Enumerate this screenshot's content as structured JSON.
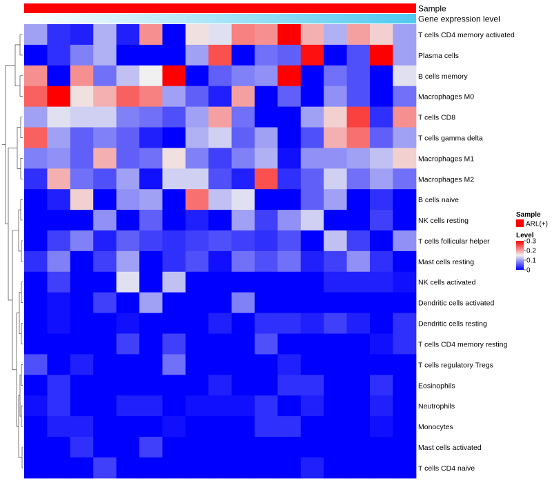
{
  "chart_data": {
    "type": "heatmap",
    "annotation_tracks": [
      {
        "label": "Sample",
        "color_start": "#ff0000",
        "color_end": "#ff0000"
      },
      {
        "label": "Gene expression level",
        "color_start": "#ffffff",
        "color_end": "#4ec9f0"
      }
    ],
    "rows": [
      "T cells CD4 memory activated",
      "Plasma cells",
      "B cells memory",
      "Macrophages M0",
      "T cells CD8",
      "T cells gamma delta",
      "Macrophages M1",
      "Macrophages M2",
      "B cells naive",
      "NK cells resting",
      "T cells follicular helper",
      "Mast cells resting",
      "NK cells activated",
      "Dendritic cells activated",
      "Dendritic cells resting",
      "T cells CD4 memory resting",
      "T cells regulatory  Tregs",
      "Eosinophils",
      "Neutrophils",
      "Monocytes",
      "Mast cells activated",
      "T cells CD4 naive"
    ],
    "n_columns": 17,
    "values": [
      [
        0.1,
        0.03,
        0.02,
        0.11,
        0.02,
        0.21,
        0.0,
        0.16,
        0.14,
        0.22,
        0.21,
        0.3,
        0.19,
        0.11,
        0.2,
        0.17,
        0.1
      ],
      [
        0.0,
        0.03,
        0.08,
        0.11,
        0.0,
        0.0,
        0.0,
        0.1,
        0.25,
        0.0,
        0.07,
        0.06,
        0.29,
        0.0,
        0.05,
        0.3,
        0.1
      ],
      [
        0.21,
        0.0,
        0.21,
        0.07,
        0.12,
        0.15,
        0.3,
        0.0,
        0.06,
        0.08,
        0.09,
        0.3,
        0.0,
        0.07,
        0.05,
        0.0,
        0.14
      ],
      [
        0.24,
        0.3,
        0.16,
        0.19,
        0.24,
        0.22,
        0.1,
        0.06,
        0.02,
        0.2,
        0.0,
        0.06,
        0.0,
        0.09,
        0.05,
        0.0,
        0.07
      ],
      [
        0.1,
        0.14,
        0.13,
        0.13,
        0.08,
        0.07,
        0.05,
        0.1,
        0.2,
        0.07,
        0.0,
        0.0,
        0.1,
        0.17,
        0.26,
        0.03,
        0.21
      ],
      [
        0.24,
        0.1,
        0.06,
        0.08,
        0.06,
        0.02,
        0.0,
        0.11,
        0.13,
        0.06,
        0.1,
        0.0,
        0.05,
        0.19,
        0.23,
        0.06,
        0.1
      ],
      [
        0.08,
        0.09,
        0.06,
        0.19,
        0.06,
        0.07,
        0.16,
        0.08,
        0.04,
        0.08,
        0.11,
        0.01,
        0.09,
        0.09,
        0.1,
        0.12,
        0.17
      ],
      [
        0.03,
        0.19,
        0.07,
        0.05,
        0.1,
        0.01,
        0.13,
        0.13,
        0.05,
        0.02,
        0.25,
        0.03,
        0.06,
        0.13,
        0.07,
        0.1,
        0.07
      ],
      [
        0.0,
        0.02,
        0.17,
        0.0,
        0.09,
        0.1,
        0.0,
        0.23,
        0.12,
        0.14,
        0.0,
        0.0,
        0.06,
        0.1,
        0.0,
        0.03,
        0.0
      ],
      [
        0.0,
        0.0,
        0.0,
        0.09,
        0.0,
        0.06,
        0.0,
        0.02,
        0.0,
        0.1,
        0.04,
        0.09,
        0.13,
        0.0,
        0.0,
        0.04,
        0.0
      ],
      [
        0.0,
        0.04,
        0.08,
        0.02,
        0.06,
        0.04,
        0.03,
        0.04,
        0.05,
        0.04,
        0.03,
        0.05,
        0.0,
        0.12,
        0.04,
        0.0,
        0.09
      ],
      [
        0.03,
        0.08,
        0.0,
        0.04,
        0.1,
        0.0,
        0.03,
        0.05,
        0.01,
        0.07,
        0.05,
        0.07,
        0.02,
        0.04,
        0.09,
        0.03,
        0.0
      ],
      [
        0.0,
        0.04,
        0.0,
        0.0,
        0.14,
        0.0,
        0.12,
        0.0,
        0.0,
        0.0,
        0.0,
        0.0,
        0.0,
        0.02,
        0.02,
        0.02,
        0.01
      ],
      [
        0.0,
        0.01,
        0.0,
        0.04,
        0.0,
        0.1,
        0.0,
        0.0,
        0.0,
        0.08,
        0.0,
        0.0,
        0.0,
        0.0,
        0.0,
        0.0,
        0.0
      ],
      [
        0.0,
        0.01,
        0.0,
        0.0,
        0.01,
        0.0,
        0.0,
        0.0,
        0.02,
        0.0,
        0.03,
        0.03,
        0.02,
        0.04,
        0.02,
        0.0,
        0.03
      ],
      [
        0.0,
        0.0,
        0.0,
        0.0,
        0.04,
        0.0,
        0.04,
        0.0,
        0.0,
        0.0,
        0.05,
        0.0,
        0.0,
        0.0,
        0.0,
        0.01,
        0.03
      ],
      [
        0.05,
        0.0,
        0.02,
        0.0,
        0.0,
        0.0,
        0.07,
        0.0,
        0.0,
        0.0,
        0.0,
        0.02,
        0.0,
        0.0,
        0.0,
        0.0,
        0.0
      ],
      [
        0.0,
        0.03,
        0.0,
        0.0,
        0.0,
        0.0,
        0.0,
        0.0,
        0.02,
        0.0,
        0.0,
        0.03,
        0.03,
        0.0,
        0.0,
        0.03,
        0.0
      ],
      [
        0.01,
        0.03,
        0.0,
        0.0,
        0.02,
        0.02,
        0.0,
        0.01,
        0.01,
        0.01,
        0.03,
        0.0,
        0.02,
        0.0,
        0.0,
        0.02,
        0.0
      ],
      [
        0.0,
        0.02,
        0.02,
        0.0,
        0.0,
        0.0,
        0.01,
        0.0,
        0.0,
        0.0,
        0.03,
        0.03,
        0.0,
        0.0,
        0.0,
        0.01,
        0.0
      ],
      [
        0.0,
        0.0,
        0.03,
        0.0,
        0.0,
        0.04,
        0.0,
        0.0,
        0.0,
        0.0,
        0.0,
        0.0,
        0.0,
        0.0,
        0.0,
        0.0,
        0.0
      ],
      [
        0.0,
        0.0,
        0.0,
        0.04,
        0.0,
        0.0,
        0.0,
        0.0,
        0.0,
        0.0,
        0.0,
        0.0,
        0.02,
        0.0,
        0.0,
        0.0,
        0.0
      ]
    ],
    "color_scale": {
      "min": 0,
      "mid": 0.15,
      "max": 0.3,
      "low": "#0000ff",
      "midColor": "#f0f0f0",
      "high": "#ff0000"
    },
    "legend": {
      "sample_title": "Sample",
      "sample_entry": "ARL(+)",
      "sample_color": "#ff0000",
      "level_title": "Level",
      "level_ticks": [
        "0.3",
        "0.2",
        "0.1",
        "0"
      ]
    }
  }
}
